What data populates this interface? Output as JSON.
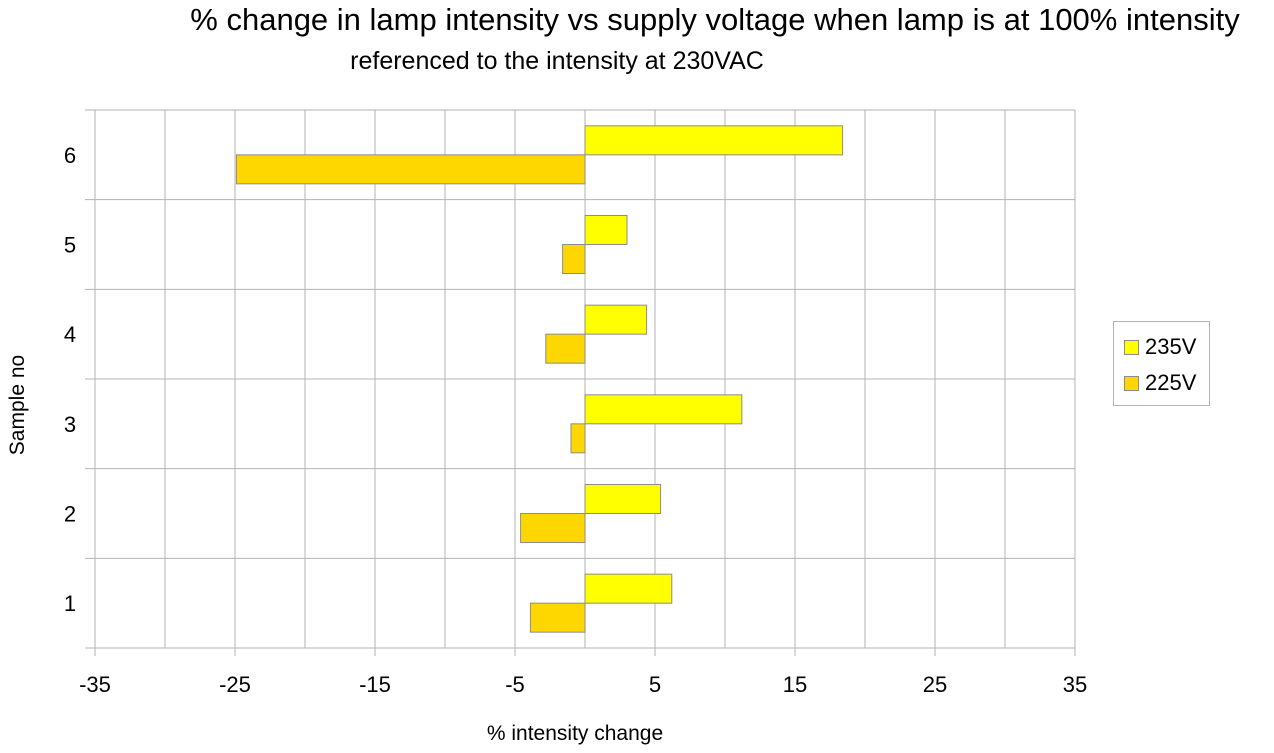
{
  "chart_data": {
    "type": "bar",
    "orientation": "horizontal",
    "title": "% change in lamp intensity vs supply voltage when lamp is at 100% intensity",
    "subtitle": "referenced to the intensity at 230VAC",
    "xlabel": "% intensity change",
    "ylabel": "Sample no",
    "categories": [
      "1",
      "2",
      "3",
      "4",
      "5",
      "6"
    ],
    "series": [
      {
        "name": "235V",
        "color": "#ffff00",
        "values": [
          6.2,
          5.4,
          11.2,
          4.4,
          3.0,
          18.4
        ]
      },
      {
        "name": "225V",
        "color": "#ffd700",
        "values": [
          -3.9,
          -4.6,
          -1.0,
          -2.8,
          -1.6,
          -24.9
        ]
      }
    ],
    "xlim": [
      -35,
      35
    ],
    "xticks": [
      -35,
      -25,
      -15,
      -5,
      5,
      15,
      25,
      35
    ],
    "grid": true,
    "legend_position": "right"
  }
}
